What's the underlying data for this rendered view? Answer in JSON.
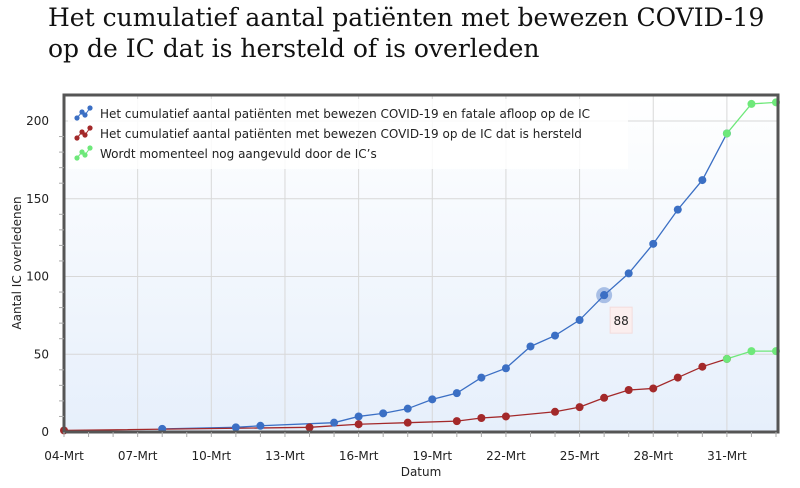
{
  "title_line1": "Het cumulatief aantal patiënten met bewezen COVID-19",
  "title_line2": "op de IC dat is hersteld of is overleden",
  "chart_data": {
    "type": "line",
    "xlabel": "Datum",
    "ylabel": "Aantal IC overledenen",
    "ylim": [
      0,
      210
    ],
    "yticks": [
      0,
      50,
      100,
      150,
      200
    ],
    "xlim": [
      "04-Mrt",
      "02-Apr"
    ],
    "xticks": [
      "04-Mrt",
      "07-Mrt",
      "10-Mrt",
      "13-Mrt",
      "16-Mrt",
      "19-Mrt",
      "22-Mrt",
      "25-Mrt",
      "28-Mrt",
      "31-Mrt"
    ],
    "grid": true,
    "legend_position": "top-left",
    "series": [
      {
        "name": "Het cumulatief aantal patiënten met bewezen COVID-19 en fatale afloop op de IC",
        "color": "#3b6fc4",
        "points": [
          [
            "08-Mrt",
            2
          ],
          [
            "11-Mrt",
            3
          ],
          [
            "12-Mrt",
            4
          ],
          [
            "15-Mrt",
            6
          ],
          [
            "16-Mrt",
            10
          ],
          [
            "17-Mrt",
            12
          ],
          [
            "18-Mrt",
            15
          ],
          [
            "19-Mrt",
            21
          ],
          [
            "20-Mrt",
            25
          ],
          [
            "21-Mrt",
            35
          ],
          [
            "22-Mrt",
            41
          ],
          [
            "23-Mrt",
            55
          ],
          [
            "24-Mrt",
            62
          ],
          [
            "25-Mrt",
            72
          ],
          [
            "26-Mrt",
            88
          ],
          [
            "27-Mrt",
            102
          ],
          [
            "28-Mrt",
            121
          ],
          [
            "29-Mrt",
            143
          ],
          [
            "30-Mrt",
            162
          ],
          [
            "31-Mrt",
            192
          ]
        ]
      },
      {
        "name": "Het cumulatief aantal patiënten met bewezen COVID-19 op de IC dat is hersteld",
        "color": "#a3292a",
        "points": [
          [
            "04-Mrt",
            1
          ],
          [
            "14-Mrt",
            3
          ],
          [
            "16-Mrt",
            5
          ],
          [
            "18-Mrt",
            6
          ],
          [
            "20-Mrt",
            7
          ],
          [
            "21-Mrt",
            9
          ],
          [
            "22-Mrt",
            10
          ],
          [
            "24-Mrt",
            13
          ],
          [
            "25-Mrt",
            16
          ],
          [
            "26-Mrt",
            22
          ],
          [
            "27-Mrt",
            27
          ],
          [
            "28-Mrt",
            28
          ],
          [
            "29-Mrt",
            35
          ],
          [
            "30-Mrt",
            42
          ],
          [
            "31-Mrt",
            47
          ]
        ]
      },
      {
        "name": "Wordt momenteel nog aangevuld door de IC’s",
        "color": "#6ee87a",
        "lines": [
          [
            [
              "31-Mrt",
              192
            ],
            [
              "01-Apr",
              211
            ],
            [
              "02-Apr",
              212
            ]
          ],
          [
            [
              "31-Mrt",
              47
            ],
            [
              "01-Apr",
              52
            ],
            [
              "02-Apr",
              52
            ]
          ]
        ]
      }
    ],
    "tooltip": {
      "x": "26-Mrt",
      "value": "88"
    }
  }
}
